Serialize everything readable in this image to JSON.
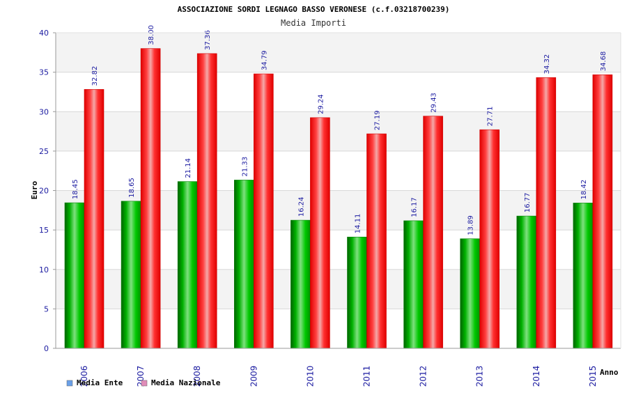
{
  "chart_data": {
    "type": "bar",
    "title": "ASSOCIAZIONE SORDI LEGNAGO BASSO VERONESE (c.f.03218700239)",
    "subtitle": "Media Importi",
    "xlabel": "Anno",
    "ylabel": "Euro",
    "ylim": [
      0,
      40
    ],
    "yticks": [
      0,
      5,
      10,
      15,
      20,
      25,
      30,
      35,
      40
    ],
    "categories": [
      "2006",
      "2007",
      "2008",
      "2009",
      "2010",
      "2011",
      "2012",
      "2013",
      "2014",
      "2015"
    ],
    "series": [
      {
        "name": "Media Ente",
        "values": [
          18.45,
          18.65,
          21.14,
          21.33,
          16.24,
          14.11,
          16.17,
          13.89,
          16.77,
          18.42
        ],
        "labels": [
          "18.45",
          "18.65",
          "21.14",
          "21.33",
          "16.24",
          "14.11",
          "16.17",
          "13.89",
          "16.77",
          "18.42"
        ],
        "color": "#00c000",
        "legend_color": "#6aa0e8"
      },
      {
        "name": "Media Nazionale",
        "values": [
          32.82,
          38.0,
          37.36,
          34.79,
          29.24,
          27.19,
          29.43,
          27.71,
          34.32,
          34.68
        ],
        "labels": [
          "32.82",
          "38.00",
          "37.36",
          "34.79",
          "29.24",
          "27.19",
          "29.43",
          "27.71",
          "34.32",
          "34.68"
        ],
        "color": "#ff1a1a",
        "legend_color": "#e08cb8"
      }
    ],
    "grid": true,
    "legend_position": "bottom-left"
  }
}
